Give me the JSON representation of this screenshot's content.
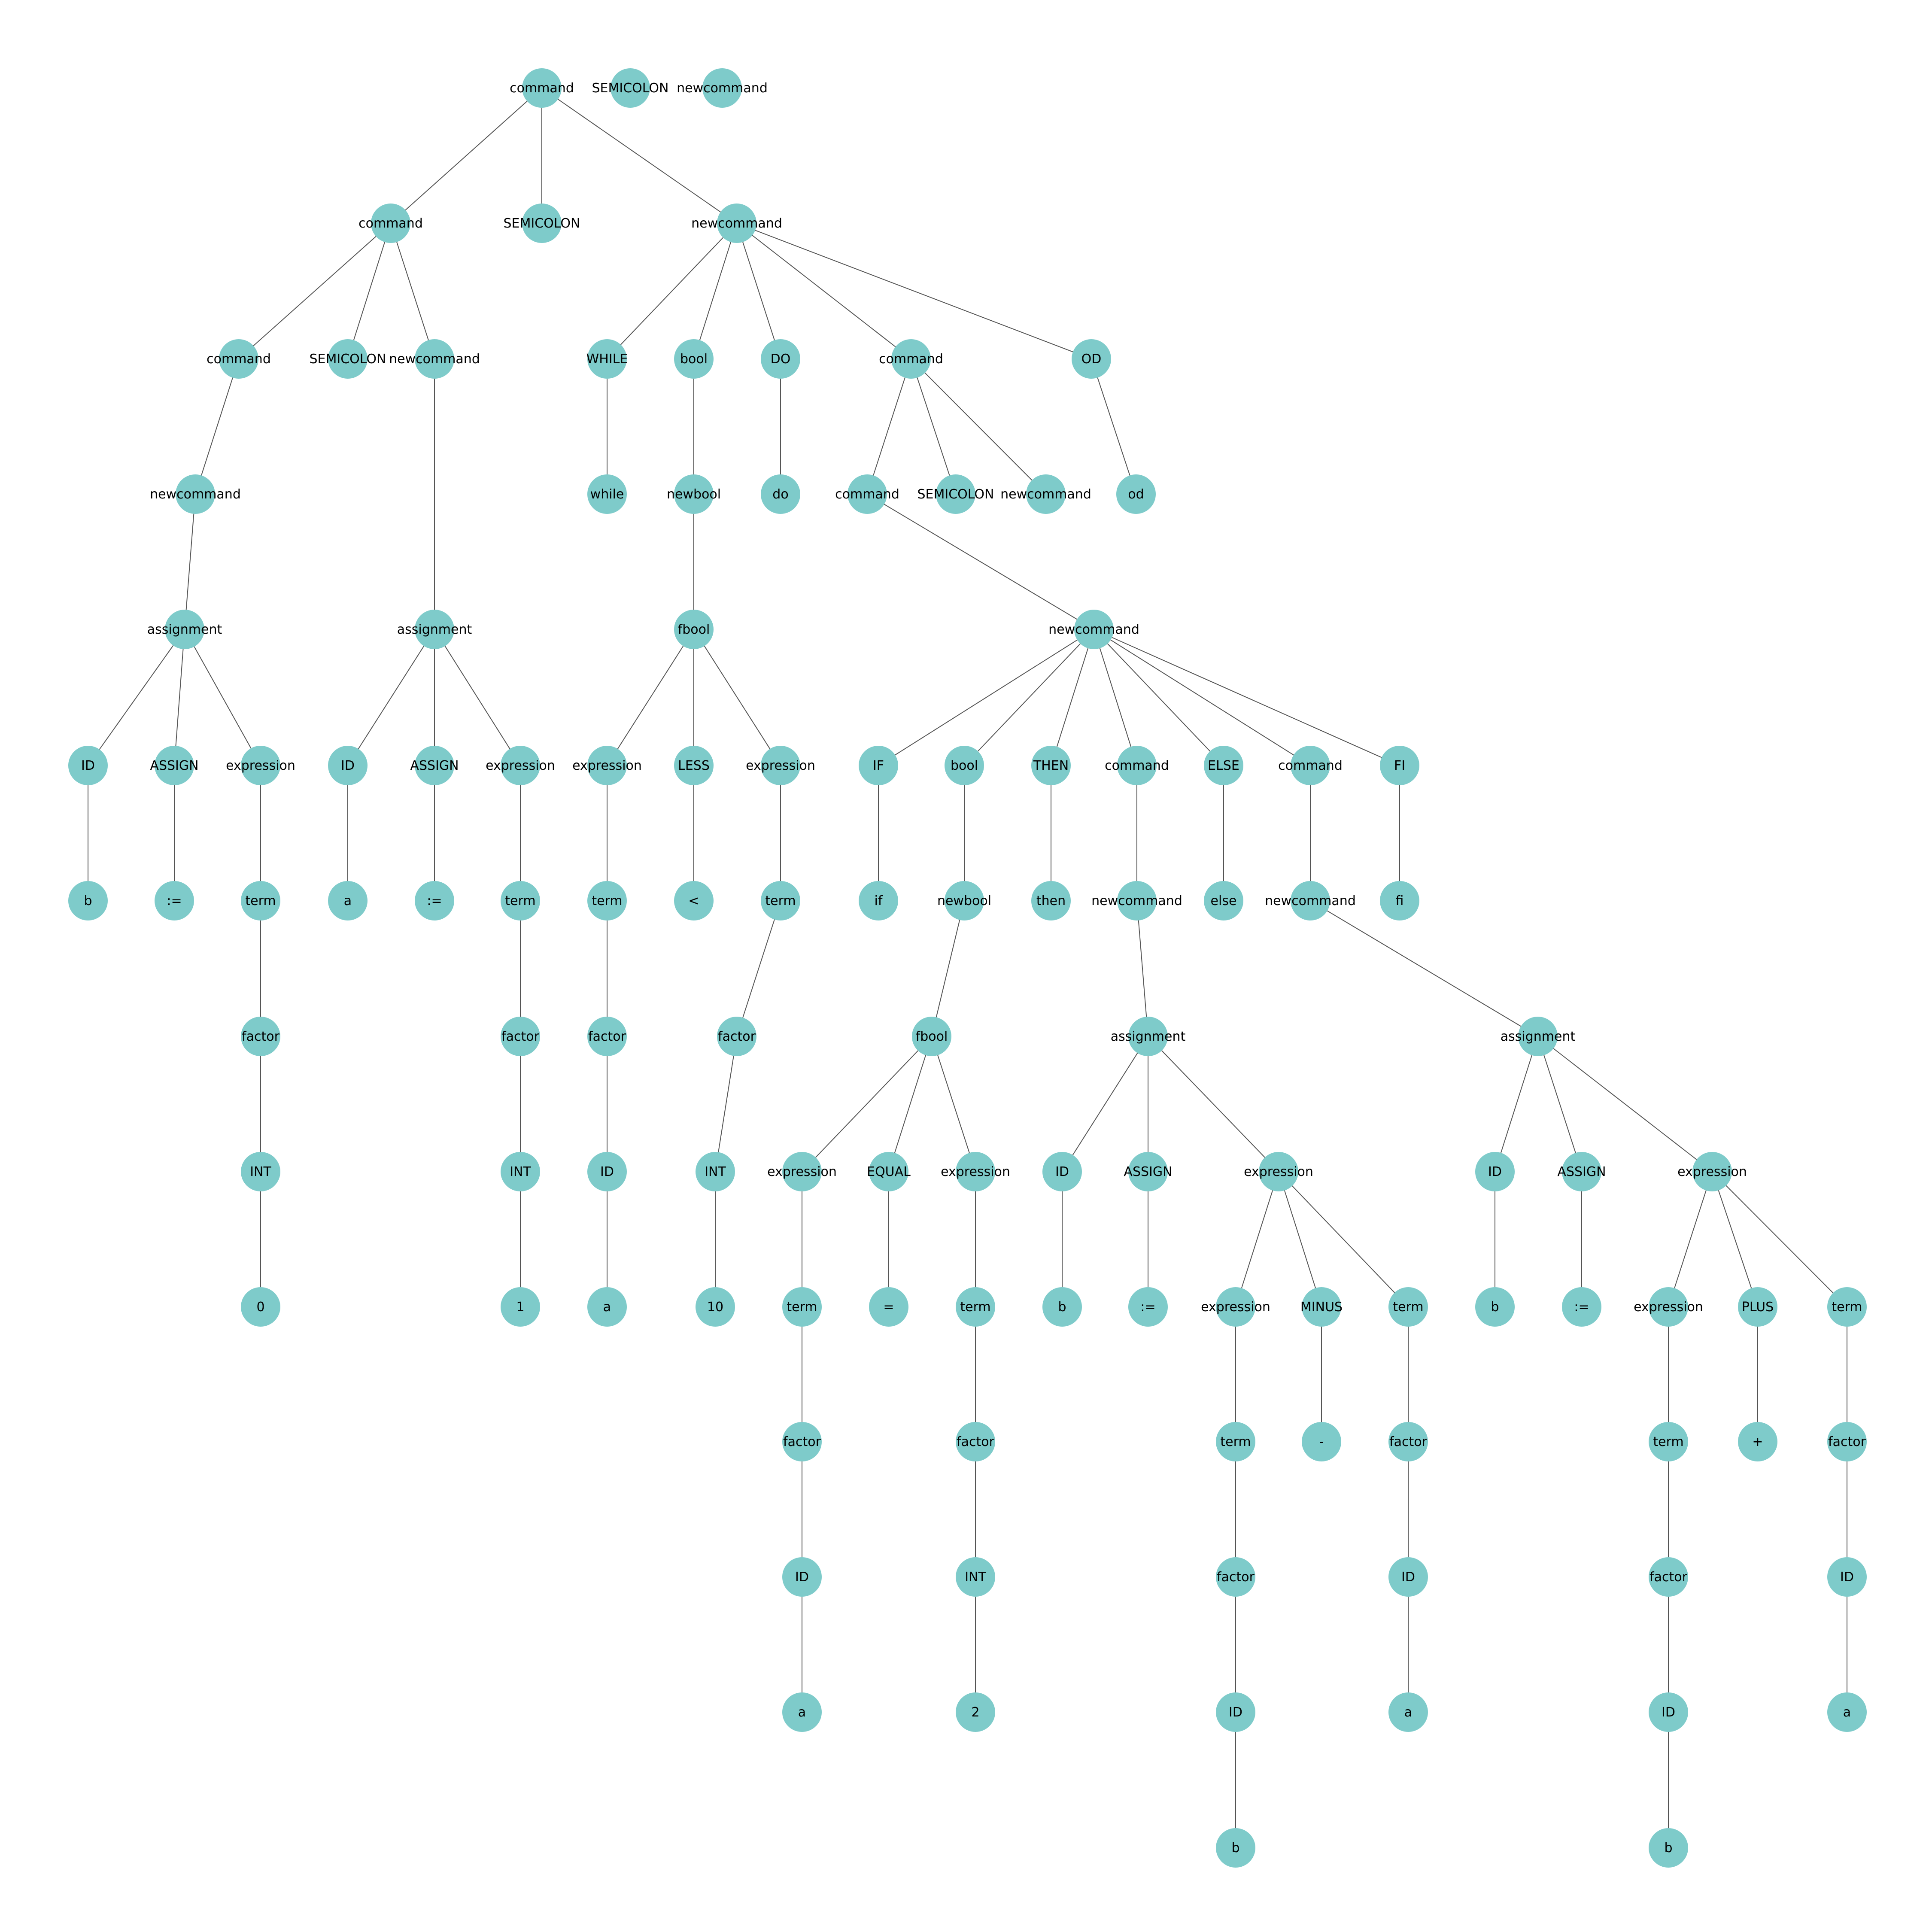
{
  "diagram": {
    "type": "parse-tree",
    "node_color": "#7ecbca",
    "edge_color": "#555555",
    "header_nodes": [
      {
        "id": "h1",
        "label": "SEMICOLON"
      },
      {
        "id": "h2",
        "label": "newcommand"
      }
    ],
    "nodes": [
      {
        "id": "r",
        "label": "command"
      },
      {
        "id": "c1",
        "label": "command"
      },
      {
        "id": "s1",
        "label": "SEMICOLON"
      },
      {
        "id": "n1",
        "label": "newcommand"
      },
      {
        "id": "c2",
        "label": "command"
      },
      {
        "id": "s2",
        "label": "SEMICOLON"
      },
      {
        "id": "n2",
        "label": "newcommand"
      },
      {
        "id": "n3",
        "label": "newcommand"
      },
      {
        "id": "a1",
        "label": "assignment"
      },
      {
        "id": "id1",
        "label": "ID"
      },
      {
        "id": "as1",
        "label": "ASSIGN"
      },
      {
        "id": "e1",
        "label": "expression"
      },
      {
        "id": "b1",
        "label": "b"
      },
      {
        "id": "op1",
        "label": ":="
      },
      {
        "id": "t1",
        "label": "term"
      },
      {
        "id": "f1",
        "label": "factor"
      },
      {
        "id": "i1",
        "label": "INT"
      },
      {
        "id": "z1",
        "label": "0"
      },
      {
        "id": "a2",
        "label": "assignment"
      },
      {
        "id": "id2",
        "label": "ID"
      },
      {
        "id": "as2",
        "label": "ASSIGN"
      },
      {
        "id": "e2",
        "label": "expression"
      },
      {
        "id": "va2",
        "label": "a"
      },
      {
        "id": "op2",
        "label": ":="
      },
      {
        "id": "t2",
        "label": "term"
      },
      {
        "id": "f2",
        "label": "factor"
      },
      {
        "id": "i2",
        "label": "INT"
      },
      {
        "id": "one",
        "label": "1"
      },
      {
        "id": "wh",
        "label": "WHILE"
      },
      {
        "id": "bo",
        "label": "bool"
      },
      {
        "id": "dok",
        "label": "DO"
      },
      {
        "id": "c3",
        "label": "command"
      },
      {
        "id": "odk",
        "label": "OD"
      },
      {
        "id": "whl",
        "label": "while"
      },
      {
        "id": "nb",
        "label": "newbool"
      },
      {
        "id": "dol",
        "label": "do"
      },
      {
        "id": "c4",
        "label": "command"
      },
      {
        "id": "s3",
        "label": "SEMICOLON"
      },
      {
        "id": "n4",
        "label": "newcommand"
      },
      {
        "id": "odl",
        "label": "od"
      },
      {
        "id": "fb",
        "label": "fbool"
      },
      {
        "id": "ex3",
        "label": "expression"
      },
      {
        "id": "less",
        "label": "LESS"
      },
      {
        "id": "ex4",
        "label": "expression"
      },
      {
        "id": "t3",
        "label": "term"
      },
      {
        "id": "lt",
        "label": "<"
      },
      {
        "id": "t4",
        "label": "term"
      },
      {
        "id": "f3",
        "label": "factor"
      },
      {
        "id": "f4",
        "label": "factor"
      },
      {
        "id": "id3",
        "label": "ID"
      },
      {
        "id": "i4",
        "label": "INT"
      },
      {
        "id": "va3",
        "label": "a"
      },
      {
        "id": "ten",
        "label": "10"
      },
      {
        "id": "n5",
        "label": "newcommand"
      },
      {
        "id": "ifk",
        "label": "IF"
      },
      {
        "id": "bo2",
        "label": "bool"
      },
      {
        "id": "thk",
        "label": "THEN"
      },
      {
        "id": "c5",
        "label": "command"
      },
      {
        "id": "elk",
        "label": "ELSE"
      },
      {
        "id": "c6",
        "label": "command"
      },
      {
        "id": "fik",
        "label": "FI"
      },
      {
        "id": "ifl",
        "label": "if"
      },
      {
        "id": "nb2",
        "label": "newbool"
      },
      {
        "id": "thl",
        "label": "then"
      },
      {
        "id": "n6",
        "label": "newcommand"
      },
      {
        "id": "ell",
        "label": "else"
      },
      {
        "id": "n7",
        "label": "newcommand"
      },
      {
        "id": "fil",
        "label": "fi"
      },
      {
        "id": "fb2",
        "label": "fbool"
      },
      {
        "id": "ex5",
        "label": "expression"
      },
      {
        "id": "eq",
        "label": "EQUAL"
      },
      {
        "id": "ex6",
        "label": "expression"
      },
      {
        "id": "t5",
        "label": "term"
      },
      {
        "id": "eqs",
        "label": "="
      },
      {
        "id": "t6",
        "label": "term"
      },
      {
        "id": "f5",
        "label": "factor"
      },
      {
        "id": "f6",
        "label": "factor"
      },
      {
        "id": "id5",
        "label": "ID"
      },
      {
        "id": "i6",
        "label": "INT"
      },
      {
        "id": "va5",
        "label": "a"
      },
      {
        "id": "two",
        "label": "2"
      },
      {
        "id": "a3",
        "label": "assignment"
      },
      {
        "id": "id7",
        "label": "ID"
      },
      {
        "id": "as3",
        "label": "ASSIGN"
      },
      {
        "id": "ex7",
        "label": "expression"
      },
      {
        "id": "b7",
        "label": "b"
      },
      {
        "id": "op3",
        "label": ":="
      },
      {
        "id": "ex8",
        "label": "expression"
      },
      {
        "id": "minus",
        "label": "MINUS"
      },
      {
        "id": "t8",
        "label": "term"
      },
      {
        "id": "t9",
        "label": "term"
      },
      {
        "id": "ms",
        "label": "-"
      },
      {
        "id": "f8",
        "label": "factor"
      },
      {
        "id": "f9",
        "label": "factor"
      },
      {
        "id": "id8",
        "label": "ID"
      },
      {
        "id": "id9",
        "label": "ID"
      },
      {
        "id": "va8",
        "label": "a"
      },
      {
        "id": "b9",
        "label": "b"
      },
      {
        "id": "a4",
        "label": "assignment"
      },
      {
        "id": "id10",
        "label": "ID"
      },
      {
        "id": "as4",
        "label": "ASSIGN"
      },
      {
        "id": "ex10",
        "label": "expression"
      },
      {
        "id": "b10",
        "label": "b"
      },
      {
        "id": "op4",
        "label": ":="
      },
      {
        "id": "ex11",
        "label": "expression"
      },
      {
        "id": "plus",
        "label": "PLUS"
      },
      {
        "id": "t10",
        "label": "term"
      },
      {
        "id": "t11",
        "label": "term"
      },
      {
        "id": "ps",
        "label": "+"
      },
      {
        "id": "f10",
        "label": "factor"
      },
      {
        "id": "f11",
        "label": "factor"
      },
      {
        "id": "id11",
        "label": "ID"
      },
      {
        "id": "id12",
        "label": "ID"
      },
      {
        "id": "va10",
        "label": "a"
      },
      {
        "id": "b12",
        "label": "b"
      }
    ],
    "edges": [
      [
        "r",
        "c1"
      ],
      [
        "r",
        "s1"
      ],
      [
        "r",
        "n1"
      ],
      [
        "c1",
        "c2"
      ],
      [
        "c1",
        "s2"
      ],
      [
        "c1",
        "n2"
      ],
      [
        "c2",
        "n3"
      ],
      [
        "n3",
        "a1"
      ],
      [
        "a1",
        "id1"
      ],
      [
        "a1",
        "as1"
      ],
      [
        "a1",
        "e1"
      ],
      [
        "id1",
        "b1"
      ],
      [
        "as1",
        "op1"
      ],
      [
        "e1",
        "t1"
      ],
      [
        "t1",
        "f1"
      ],
      [
        "f1",
        "i1"
      ],
      [
        "i1",
        "z1"
      ],
      [
        "n2",
        "a2"
      ],
      [
        "a2",
        "id2"
      ],
      [
        "a2",
        "as2"
      ],
      [
        "a2",
        "e2"
      ],
      [
        "id2",
        "va2"
      ],
      [
        "as2",
        "op2"
      ],
      [
        "e2",
        "t2"
      ],
      [
        "t2",
        "f2"
      ],
      [
        "f2",
        "i2"
      ],
      [
        "i2",
        "one"
      ],
      [
        "n1",
        "wh"
      ],
      [
        "n1",
        "bo"
      ],
      [
        "n1",
        "dok"
      ],
      [
        "n1",
        "c3"
      ],
      [
        "n1",
        "odk"
      ],
      [
        "wh",
        "whl"
      ],
      [
        "bo",
        "nb"
      ],
      [
        "dok",
        "dol"
      ],
      [
        "odk",
        "odl"
      ],
      [
        "c3",
        "c4"
      ],
      [
        "c3",
        "s3"
      ],
      [
        "c3",
        "n4"
      ],
      [
        "nb",
        "fb"
      ],
      [
        "fb",
        "ex3"
      ],
      [
        "fb",
        "less"
      ],
      [
        "fb",
        "ex4"
      ],
      [
        "ex3",
        "t3"
      ],
      [
        "less",
        "lt"
      ],
      [
        "ex4",
        "t4"
      ],
      [
        "t3",
        "f3"
      ],
      [
        "t4",
        "f4"
      ],
      [
        "f3",
        "id3"
      ],
      [
        "f4",
        "i4"
      ],
      [
        "id3",
        "va3"
      ],
      [
        "i4",
        "ten"
      ],
      [
        "c4",
        "n5"
      ],
      [
        "n5",
        "ifk"
      ],
      [
        "n5",
        "bo2"
      ],
      [
        "n5",
        "thk"
      ],
      [
        "n5",
        "c5"
      ],
      [
        "n5",
        "elk"
      ],
      [
        "n5",
        "c6"
      ],
      [
        "n5",
        "fik"
      ],
      [
        "ifk",
        "ifl"
      ],
      [
        "bo2",
        "nb2"
      ],
      [
        "thk",
        "thl"
      ],
      [
        "c5",
        "n6"
      ],
      [
        "elk",
        "ell"
      ],
      [
        "c6",
        "n7"
      ],
      [
        "fik",
        "fil"
      ],
      [
        "nb2",
        "fb2"
      ],
      [
        "fb2",
        "ex5"
      ],
      [
        "fb2",
        "eq"
      ],
      [
        "fb2",
        "ex6"
      ],
      [
        "ex5",
        "t5"
      ],
      [
        "eq",
        "eqs"
      ],
      [
        "ex6",
        "t6"
      ],
      [
        "t5",
        "f5"
      ],
      [
        "t6",
        "f6"
      ],
      [
        "f5",
        "id5"
      ],
      [
        "f6",
        "i6"
      ],
      [
        "id5",
        "va5"
      ],
      [
        "i6",
        "two"
      ],
      [
        "n6",
        "a3"
      ],
      [
        "a3",
        "id7"
      ],
      [
        "a3",
        "as3"
      ],
      [
        "a3",
        "ex7"
      ],
      [
        "id7",
        "b7"
      ],
      [
        "as3",
        "op3"
      ],
      [
        "ex7",
        "ex8"
      ],
      [
        "ex7",
        "minus"
      ],
      [
        "ex7",
        "t8"
      ],
      [
        "ex8",
        "t9"
      ],
      [
        "minus",
        "ms"
      ],
      [
        "t8",
        "f8"
      ],
      [
        "t9",
        "f9"
      ],
      [
        "f8",
        "id8"
      ],
      [
        "f9",
        "id9"
      ],
      [
        "id8",
        "va8"
      ],
      [
        "id9",
        "b9"
      ],
      [
        "n7",
        "a4"
      ],
      [
        "a4",
        "id10"
      ],
      [
        "a4",
        "as4"
      ],
      [
        "a4",
        "ex10"
      ],
      [
        "id10",
        "b10"
      ],
      [
        "as4",
        "op4"
      ],
      [
        "ex10",
        "ex11"
      ],
      [
        "ex10",
        "plus"
      ],
      [
        "ex10",
        "t10"
      ],
      [
        "ex11",
        "t11"
      ],
      [
        "plus",
        "ps"
      ],
      [
        "t10",
        "f10"
      ],
      [
        "t11",
        "f11"
      ],
      [
        "f10",
        "id11"
      ],
      [
        "f11",
        "id12"
      ],
      [
        "id11",
        "va10"
      ],
      [
        "id12",
        "b12"
      ]
    ]
  }
}
